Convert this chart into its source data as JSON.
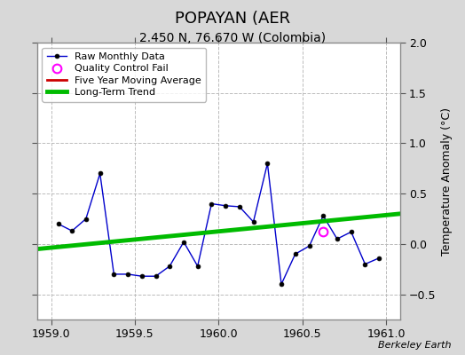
{
  "title": "POPAYAN (AER",
  "subtitle": "2.450 N, 76.670 W (Colombia)",
  "watermark": "Berkeley Earth",
  "xlim": [
    1958.917,
    1961.083
  ],
  "ylim": [
    -0.75,
    2.0
  ],
  "yticks": [
    -0.5,
    0.0,
    0.5,
    1.0,
    1.5,
    2.0
  ],
  "xticks": [
    1959.0,
    1959.5,
    1960.0,
    1960.5,
    1961.0
  ],
  "ylabel": "Temperature Anomaly (°C)",
  "raw_x": [
    1959.042,
    1959.125,
    1959.208,
    1959.292,
    1959.375,
    1959.458,
    1959.542,
    1959.625,
    1959.708,
    1959.792,
    1959.875,
    1959.958,
    1960.042,
    1960.125,
    1960.208,
    1960.292,
    1960.375,
    1960.458,
    1960.542,
    1960.625,
    1960.708,
    1960.792,
    1960.875,
    1960.958
  ],
  "raw_y": [
    0.2,
    0.13,
    0.25,
    0.7,
    -0.3,
    -0.3,
    -0.32,
    -0.32,
    -0.22,
    0.02,
    -0.22,
    0.4,
    0.38,
    0.37,
    0.22,
    0.8,
    -0.4,
    -0.1,
    -0.02,
    0.28,
    0.05,
    0.12,
    -0.2,
    -0.14
  ],
  "qc_fail_x": [
    1960.625
  ],
  "qc_fail_y": [
    0.12
  ],
  "trend_x": [
    1958.917,
    1961.083
  ],
  "trend_y": [
    -0.05,
    0.3
  ],
  "raw_color": "#0000cc",
  "trend_color": "#00bb00",
  "moving_avg_color": "#cc0000",
  "qc_color": "#ff00ff",
  "background_color": "#d8d8d8",
  "plot_background": "#ffffff",
  "grid_color": "#bbbbbb",
  "title_fontsize": 13,
  "subtitle_fontsize": 10,
  "label_fontsize": 9,
  "tick_fontsize": 9,
  "watermark_fontsize": 8
}
